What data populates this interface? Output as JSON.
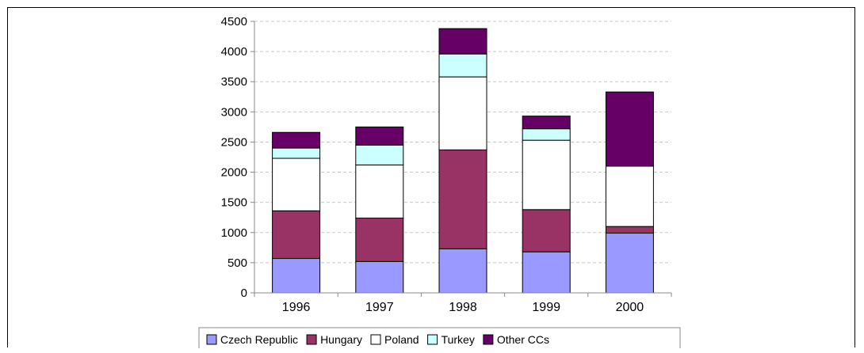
{
  "chart_data": {
    "type": "bar",
    "stacked": true,
    "categories": [
      "1996",
      "1997",
      "1998",
      "1999",
      "2000"
    ],
    "series": [
      {
        "name": "Czech Republic",
        "color": "#9999ff",
        "values": [
          570,
          520,
          730,
          680,
          990
        ]
      },
      {
        "name": "Hungary",
        "color": "#993366",
        "values": [
          790,
          720,
          1640,
          700,
          110
        ]
      },
      {
        "name": "Poland",
        "color": "#ffffff",
        "values": [
          870,
          880,
          1210,
          1150,
          1000
        ]
      },
      {
        "name": "Turkey",
        "color": "#ccffff",
        "values": [
          170,
          330,
          380,
          190,
          0
        ]
      },
      {
        "name": "Other CCs",
        "color": "#660066",
        "values": [
          260,
          300,
          420,
          210,
          1230
        ]
      }
    ],
    "title": "",
    "xlabel": "",
    "ylabel": "",
    "ylim": [
      0,
      4500
    ],
    "yticks": [
      0,
      500,
      1000,
      1500,
      2000,
      2500,
      3000,
      3500,
      4000,
      4500
    ],
    "grid": true,
    "legend": "bottom"
  }
}
